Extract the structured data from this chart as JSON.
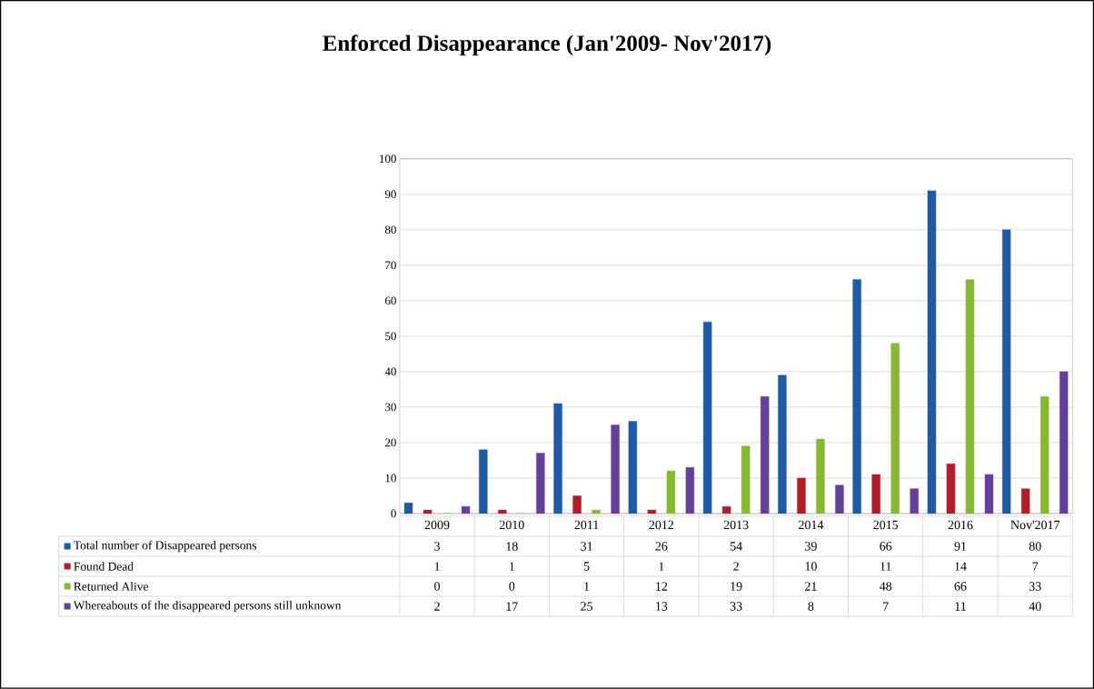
{
  "chart_data": {
    "type": "bar",
    "title": "Enforced Disappearance (Jan'2009- Nov'2017)",
    "categories": [
      "2009",
      "2010",
      "2011",
      "2012",
      "2013",
      "2014",
      "2015",
      "2016",
      "Nov'2017"
    ],
    "series": [
      {
        "name": "Total number of Disappeared persons",
        "color": "#1f5aa6",
        "values": [
          3,
          18,
          31,
          26,
          54,
          39,
          66,
          91,
          80
        ]
      },
      {
        "name": "Found Dead",
        "color": "#b01e28",
        "values": [
          1,
          1,
          5,
          1,
          2,
          10,
          11,
          14,
          7
        ]
      },
      {
        "name": "Returned Alive",
        "color": "#86b832",
        "values": [
          0,
          0,
          1,
          12,
          19,
          21,
          48,
          66,
          33
        ]
      },
      {
        "name": "Whereabouts of the disappeared persons still unknown",
        "color": "#65409a",
        "values": [
          2,
          17,
          25,
          13,
          33,
          8,
          7,
          11,
          40
        ]
      }
    ],
    "ylim": [
      0,
      100
    ],
    "yticks": [
      0,
      10,
      20,
      30,
      40,
      50,
      60,
      70,
      80,
      90,
      100
    ],
    "grid": "y",
    "legend": "bottom",
    "data_labels": true
  }
}
